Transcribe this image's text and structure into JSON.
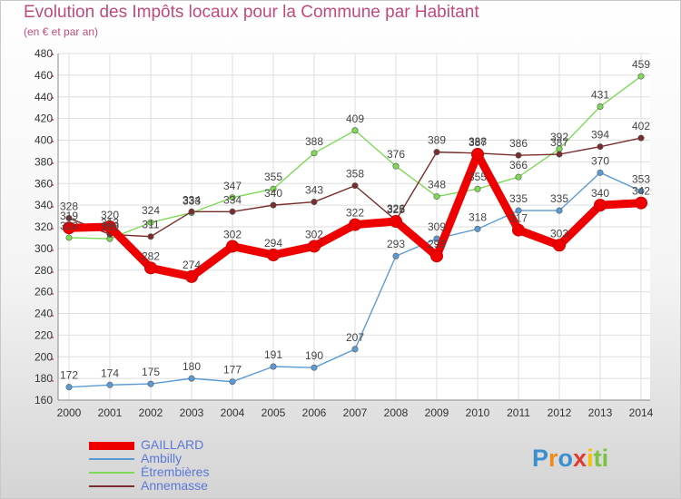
{
  "header": {
    "title": "Evolution des Impôts locaux pour la Commune par Habitant",
    "subtitle": "(en € et par an)"
  },
  "chart_data": {
    "type": "line",
    "title": "Evolution des Impôts locaux pour la Commune par Habitant",
    "subtitle": "(en € et par an)",
    "xlabel": "",
    "ylabel": "",
    "categories": [
      "2000",
      "2001",
      "2002",
      "2003",
      "2004",
      "2005",
      "2006",
      "2007",
      "2008",
      "2009",
      "2010",
      "2011",
      "2012",
      "2013",
      "2014"
    ],
    "ylim": [
      160,
      480
    ],
    "yticks": [
      160,
      180,
      200,
      220,
      240,
      260,
      280,
      300,
      320,
      340,
      360,
      380,
      400,
      420,
      440,
      460,
      480
    ],
    "grid": true,
    "legend_position": "bottom-left",
    "series": [
      {
        "name": "GAILLARD",
        "color": "#ee0000",
        "values": [
          319,
          320,
          282,
          274,
          302,
          294,
          302,
          322,
          325,
          293,
          387,
          317,
          303,
          340,
          342
        ]
      },
      {
        "name": "Ambilly",
        "color": "#5b9bd5",
        "values": [
          172,
          174,
          175,
          180,
          177,
          191,
          190,
          207,
          293,
          309,
          318,
          335,
          335,
          370,
          353
        ]
      },
      {
        "name": "Étrembières",
        "color": "#7ed957",
        "values": [
          310,
          309,
          324,
          333,
          347,
          355,
          388,
          409,
          376,
          348,
          355,
          366,
          392,
          431,
          459
        ]
      },
      {
        "name": "Annemasse",
        "color": "#7a2d2d",
        "values": [
          328,
          313,
          311,
          334,
          334,
          340,
          343,
          358,
          326,
          389,
          388,
          386,
          387,
          394,
          402
        ]
      }
    ]
  },
  "logo": {
    "text": "Proxiti",
    "letters": [
      "P",
      "r",
      "o",
      "x",
      "i",
      "t",
      "i"
    ],
    "colors": [
      "#3a8fd0",
      "#f08a1c",
      "#3a8fd0",
      "#e23b2e",
      "#f5c100",
      "#7cc142",
      "#7cc142"
    ]
  }
}
